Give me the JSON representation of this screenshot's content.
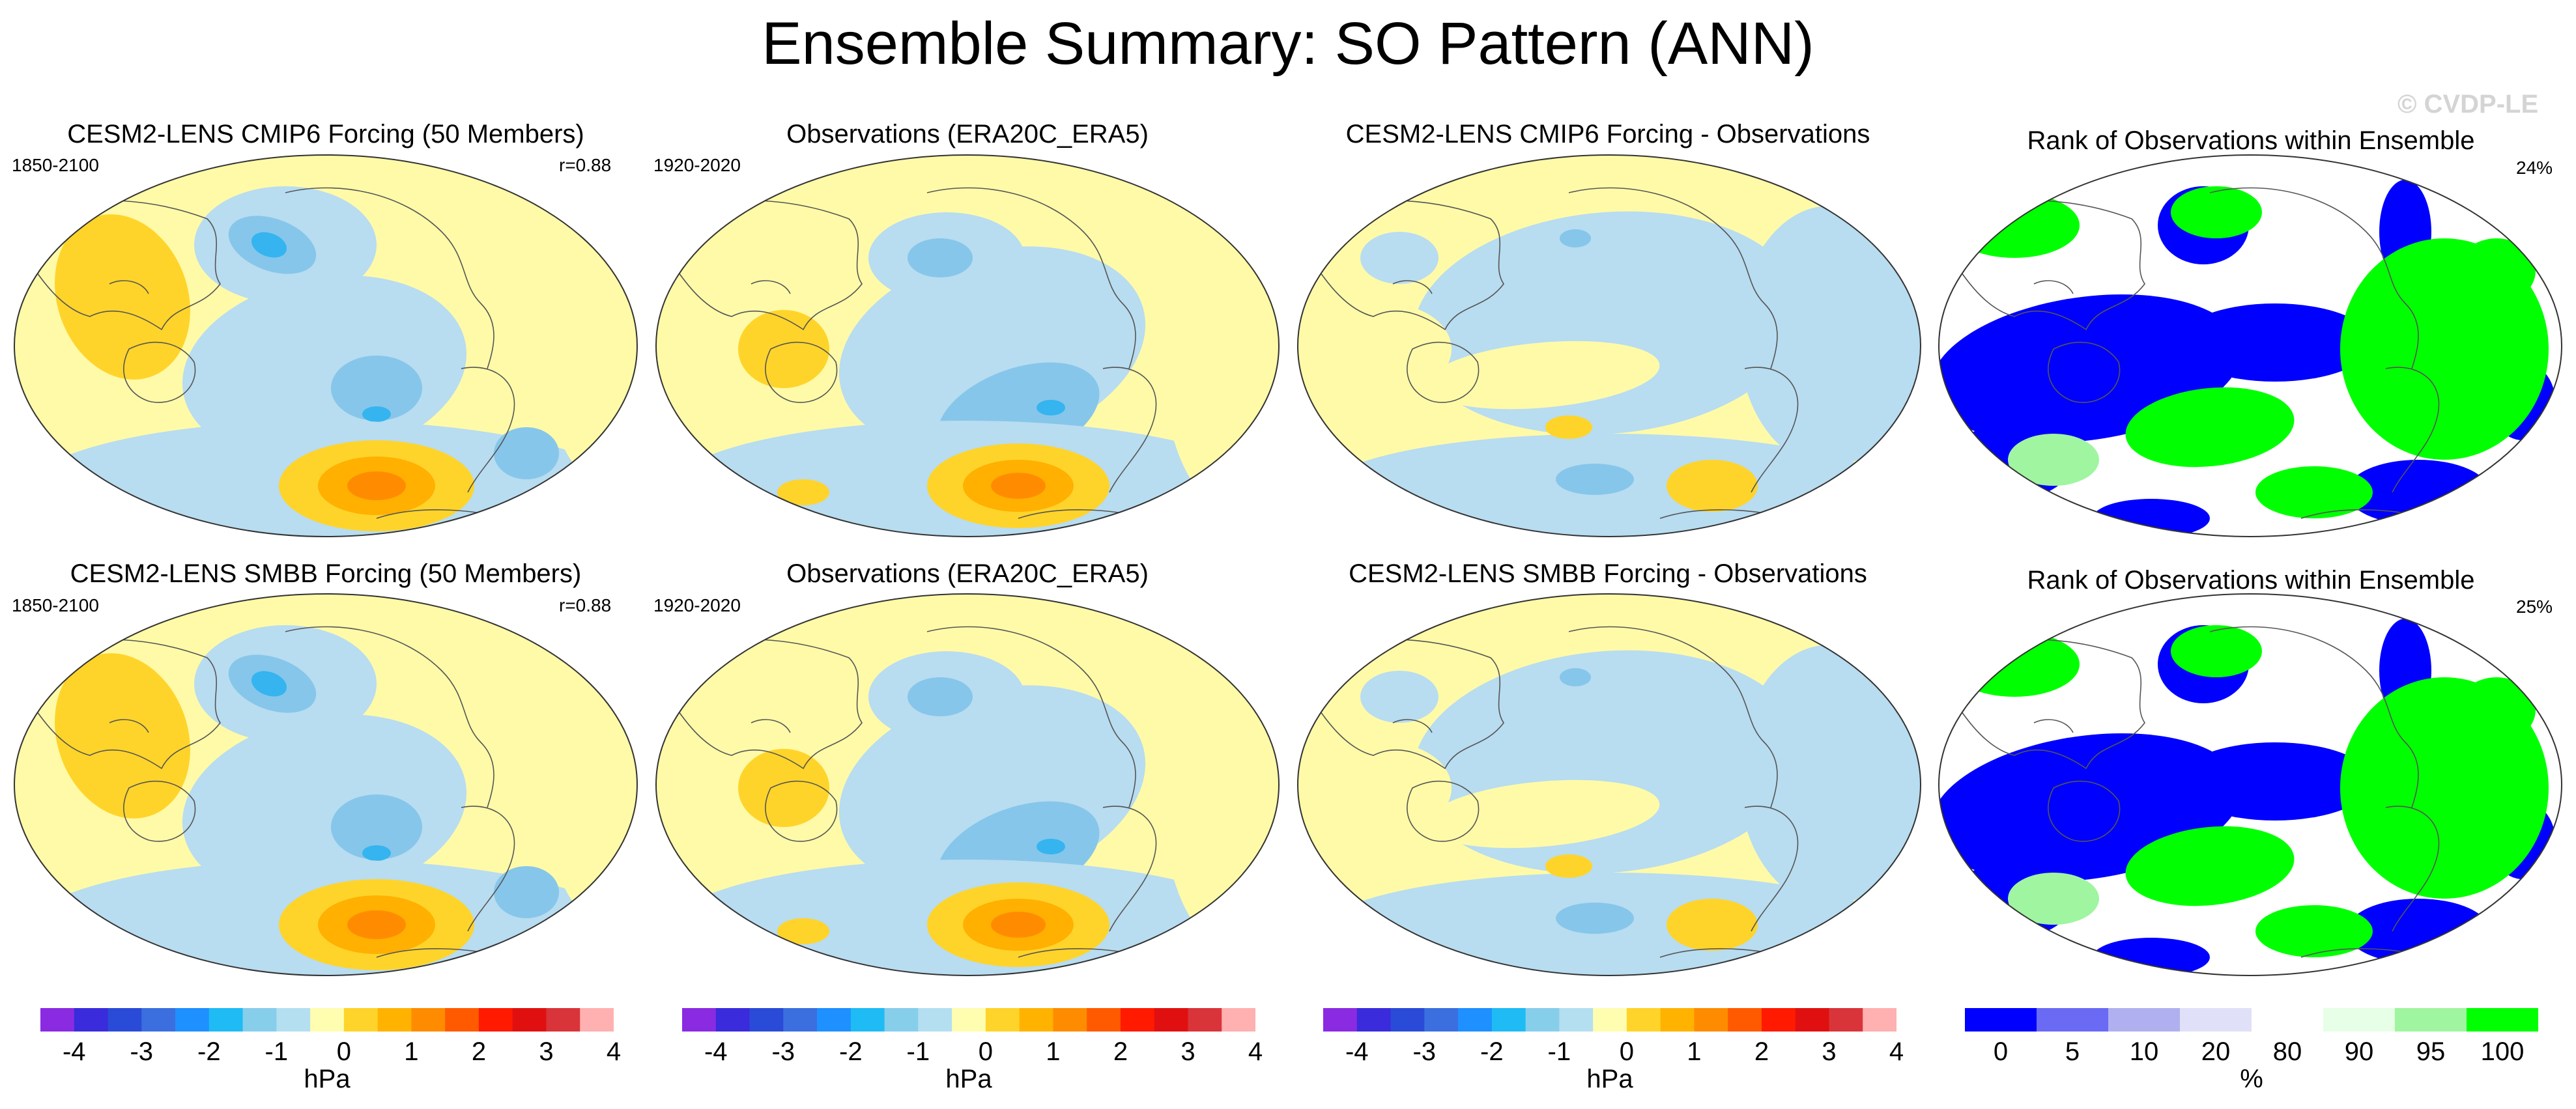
{
  "title": "Ensemble Summary: SO Pattern (ANN)",
  "copyright": "© CVDP-LE",
  "palette": {
    "diff": [
      "#8a2be2",
      "#3a2bdc",
      "#2a4bd7",
      "#3b6fe0",
      "#1e90ff",
      "#1ebbf5",
      "#87ceeb",
      "#b4dff0",
      "#fffdb0",
      "#ffd42a",
      "#ffb300",
      "#ff8c00",
      "#ff5a00",
      "#ff1a00",
      "#e01010",
      "#d9343a",
      "#ffb0b0"
    ],
    "pct": [
      "#0000ff",
      "#6a6af5",
      "#b0b0f0",
      "#e0e0f8",
      "#ffffff",
      "#e6ffe6",
      "#a0f5a0",
      "#00ff00"
    ]
  },
  "panels": [
    {
      "title": "CESM2-LENS CMIP6 Forcing (50 Members)",
      "left": "1850-2100",
      "right": "r=0.88",
      "kind": "model"
    },
    {
      "title": "Observations (ERA20C_ERA5)",
      "left": "1920-2020",
      "right": "",
      "kind": "obs"
    },
    {
      "title": "CESM2-LENS CMIP6 Forcing - Observations",
      "left": "",
      "right": "",
      "kind": "diff"
    },
    {
      "title": "Rank of Observations within Ensemble",
      "left": "",
      "right": "24%",
      "kind": "rank"
    },
    {
      "title": "CESM2-LENS SMBB Forcing (50 Members)",
      "left": "1850-2100",
      "right": "r=0.88",
      "kind": "model"
    },
    {
      "title": "Observations (ERA20C_ERA5)",
      "left": "1920-2020",
      "right": "",
      "kind": "obs"
    },
    {
      "title": "CESM2-LENS SMBB Forcing - Observations",
      "left": "",
      "right": "",
      "kind": "diff"
    },
    {
      "title": "Rank of Observations within Ensemble",
      "left": "",
      "right": "25%",
      "kind": "rank"
    }
  ],
  "colorbars": [
    {
      "labels": [
        "-4",
        "-3",
        "-2",
        "-1",
        "0",
        "1",
        "2",
        "3",
        "4"
      ],
      "unit": "hPa"
    },
    {
      "labels": [
        "-4",
        "-3",
        "-2",
        "-1",
        "0",
        "1",
        "2",
        "3",
        "4"
      ],
      "unit": "hPa"
    },
    {
      "labels": [
        "-4",
        "-3",
        "-2",
        "-1",
        "0",
        "1",
        "2",
        "3",
        "4"
      ],
      "unit": "hPa"
    },
    {
      "labels": [
        "0",
        "5",
        "10",
        "20",
        "80",
        "90",
        "95",
        "100"
      ],
      "unit": "%"
    }
  ],
  "chart_data": {
    "type": "heatmap",
    "title": "Ensemble Summary: SO Pattern (ANN)",
    "projection": "Robinson (Pacific-centered)",
    "contour_levels_hPa": [
      -4,
      -3.5,
      -3,
      -2.5,
      -2,
      -1.5,
      -1,
      -0.5,
      0,
      0.5,
      1,
      1.5,
      2,
      2.5,
      3,
      3.5,
      4
    ],
    "rank_levels_pct": [
      0,
      5,
      10,
      20,
      80,
      90,
      95,
      100
    ],
    "panels": [
      {
        "name": "CESM2-LENS CMIP6 Forcing (50 Members)",
        "period": "1850-2100",
        "pattern_correlation": 0.88
      },
      {
        "name": "Observations (ERA20C_ERA5)",
        "period": "1920-2020"
      },
      {
        "name": "CESM2-LENS CMIP6 Forcing - Observations"
      },
      {
        "name": "Rank of Observations within Ensemble",
        "percent": 24
      },
      {
        "name": "CESM2-LENS SMBB Forcing (50 Members)",
        "period": "1850-2100",
        "pattern_correlation": 0.88
      },
      {
        "name": "Observations (ERA20C_ERA5)",
        "period": "1920-2020"
      },
      {
        "name": "CESM2-LENS SMBB Forcing - Observations"
      },
      {
        "name": "Rank of Observations within Ensemble",
        "percent": 25
      }
    ]
  }
}
